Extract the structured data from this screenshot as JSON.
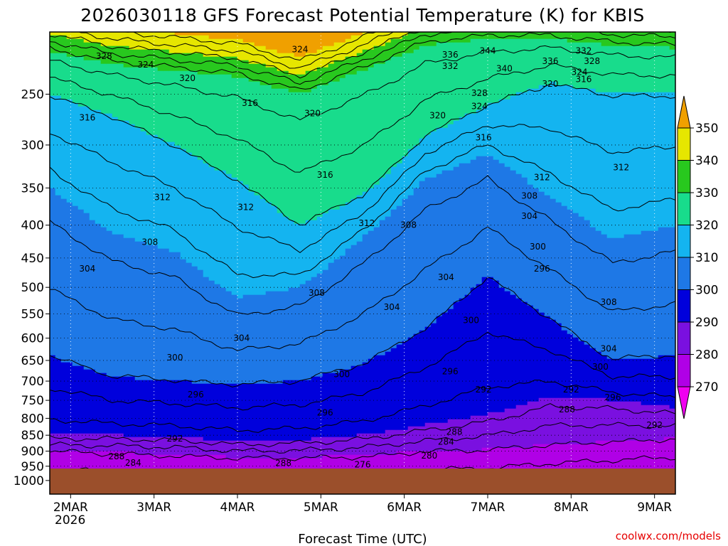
{
  "chart_data": {
    "type": "contour",
    "title": "2026030118 GFS Forecast Potential Temperature (K) for KBIS",
    "xlabel": "Forecast Time (UTC)",
    "ylabel": "",
    "credit": "coolwx.com/models",
    "x_ticks": [
      "2MAR",
      "3MAR",
      "4MAR",
      "5MAR",
      "6MAR",
      "7MAR",
      "8MAR",
      "9MAR"
    ],
    "x_year_label": "2026",
    "xlim_days": [
      1.75,
      9.25
    ],
    "y_ticks": [
      250,
      300,
      350,
      400,
      450,
      500,
      550,
      600,
      650,
      700,
      750,
      800,
      850,
      900,
      950,
      1000
    ],
    "y_label_strings": [
      "250",
      "300",
      "350",
      "400",
      "450",
      "500",
      "550",
      "600",
      "650",
      "700",
      "750",
      "800",
      "850",
      "900",
      "950",
      "1000"
    ],
    "ylim_hpa": [
      200,
      1050
    ],
    "y_scale": "log-pressure",
    "colorbar": {
      "levels": [
        270,
        280,
        290,
        300,
        310,
        320,
        330,
        340,
        350
      ],
      "labels": [
        "270",
        "280",
        "290",
        "300",
        "310",
        "320",
        "330",
        "340",
        "350"
      ],
      "colors": [
        "#f000f0",
        "#b000e6",
        "#7a10e0",
        "#0000dc",
        "#1e78e6",
        "#14b4f0",
        "#18dc8c",
        "#28c81e",
        "#e6e600",
        "#f0a000"
      ]
    },
    "contour_interval_K": 4,
    "contour_levels_K": [
      272,
      276,
      280,
      284,
      288,
      292,
      296,
      300,
      304,
      308,
      312,
      316,
      320,
      324,
      328,
      332,
      336,
      340,
      344,
      348
    ],
    "contour_profiles": [
      {
        "theta": 280,
        "p": [
          900,
          905,
          910,
          920,
          920,
          915,
          900,
          895,
          880,
          870,
          860
        ]
      },
      {
        "theta": 290,
        "p": [
          850,
          850,
          855,
          870,
          865,
          850,
          820,
          790,
          740,
          750,
          770
        ]
      },
      {
        "theta": 300,
        "p": [
          640,
          690,
          700,
          710,
          700,
          660,
          580,
          480,
          560,
          650,
          640
        ]
      },
      {
        "theta": 310,
        "p": [
          350,
          410,
          440,
          520,
          500,
          420,
          340,
          310,
          360,
          420,
          400
        ]
      },
      {
        "theta": 320,
        "p": [
          250,
          270,
          300,
          340,
          400,
          360,
          290,
          260,
          240,
          250,
          250
        ]
      },
      {
        "theta": 330,
        "p": [
          215,
          225,
          230,
          235,
          250,
          230,
          210,
          205,
          205,
          210,
          212
        ]
      }
    ],
    "contour_profile_days": [
      1.75,
      2.5,
      3.25,
      4.0,
      4.75,
      5.5,
      6.25,
      7.0,
      7.75,
      8.5,
      9.25
    ],
    "contour_labels": [
      {
        "text": "328",
        "day": 2.4,
        "p": 218
      },
      {
        "text": "324",
        "day": 2.9,
        "p": 225
      },
      {
        "text": "320",
        "day": 3.4,
        "p": 236
      },
      {
        "text": "324",
        "day": 4.75,
        "p": 213
      },
      {
        "text": "336",
        "day": 6.55,
        "p": 217
      },
      {
        "text": "332",
        "day": 6.55,
        "p": 226
      },
      {
        "text": "344",
        "day": 7.0,
        "p": 214
      },
      {
        "text": "340",
        "day": 7.2,
        "p": 228
      },
      {
        "text": "336",
        "day": 7.75,
        "p": 222
      },
      {
        "text": "332",
        "day": 8.15,
        "p": 214
      },
      {
        "text": "328",
        "day": 8.25,
        "p": 222
      },
      {
        "text": "324",
        "day": 8.1,
        "p": 231
      },
      {
        "text": "316",
        "day": 2.2,
        "p": 272
      },
      {
        "text": "316",
        "day": 4.15,
        "p": 258
      },
      {
        "text": "320",
        "day": 4.9,
        "p": 268
      },
      {
        "text": "328",
        "day": 6.9,
        "p": 249
      },
      {
        "text": "324",
        "day": 6.9,
        "p": 261
      },
      {
        "text": "320",
        "day": 6.4,
        "p": 270
      },
      {
        "text": "320",
        "day": 7.75,
        "p": 241
      },
      {
        "text": "316",
        "day": 8.15,
        "p": 237
      },
      {
        "text": "316",
        "day": 6.95,
        "p": 292
      },
      {
        "text": "316",
        "day": 5.05,
        "p": 334
      },
      {
        "text": "312",
        "day": 3.1,
        "p": 362
      },
      {
        "text": "312",
        "day": 4.1,
        "p": 375
      },
      {
        "text": "312",
        "day": 5.55,
        "p": 397
      },
      {
        "text": "308",
        "day": 6.05,
        "p": 400
      },
      {
        "text": "312",
        "day": 7.65,
        "p": 337
      },
      {
        "text": "308",
        "day": 7.5,
        "p": 360
      },
      {
        "text": "304",
        "day": 7.5,
        "p": 387
      },
      {
        "text": "312",
        "day": 8.6,
        "p": 325
      },
      {
        "text": "308",
        "day": 2.95,
        "p": 425
      },
      {
        "text": "304",
        "day": 2.2,
        "p": 468
      },
      {
        "text": "300",
        "day": 7.6,
        "p": 432
      },
      {
        "text": "296",
        "day": 7.65,
        "p": 468
      },
      {
        "text": "304",
        "day": 6.5,
        "p": 482
      },
      {
        "text": "308",
        "day": 4.95,
        "p": 510
      },
      {
        "text": "304",
        "day": 5.85,
        "p": 537
      },
      {
        "text": "300",
        "day": 6.8,
        "p": 563
      },
      {
        "text": "304",
        "day": 4.05,
        "p": 600
      },
      {
        "text": "308",
        "day": 8.45,
        "p": 527
      },
      {
        "text": "304",
        "day": 8.45,
        "p": 623
      },
      {
        "text": "300",
        "day": 8.35,
        "p": 665
      },
      {
        "text": "300",
        "day": 3.25,
        "p": 643
      },
      {
        "text": "300",
        "day": 5.25,
        "p": 683
      },
      {
        "text": "296",
        "day": 6.55,
        "p": 676
      },
      {
        "text": "292",
        "day": 6.95,
        "p": 722
      },
      {
        "text": "296",
        "day": 3.5,
        "p": 735
      },
      {
        "text": "296",
        "day": 5.05,
        "p": 784
      },
      {
        "text": "292",
        "day": 3.25,
        "p": 860
      },
      {
        "text": "288",
        "day": 6.6,
        "p": 840
      },
      {
        "text": "284",
        "day": 6.5,
        "p": 870
      },
      {
        "text": "280",
        "day": 6.3,
        "p": 915
      },
      {
        "text": "292",
        "day": 8.0,
        "p": 722
      },
      {
        "text": "288",
        "day": 7.95,
        "p": 775
      },
      {
        "text": "296",
        "day": 8.5,
        "p": 742
      },
      {
        "text": "292",
        "day": 9.0,
        "p": 820
      },
      {
        "text": "288",
        "day": 2.55,
        "p": 917
      },
      {
        "text": "284",
        "day": 2.75,
        "p": 938
      },
      {
        "text": "288",
        "day": 4.55,
        "p": 940
      },
      {
        "text": "276",
        "day": 5.5,
        "p": 945
      }
    ],
    "terrain_surface_hpa": 958,
    "terrain_color": "#9b4f2b"
  }
}
